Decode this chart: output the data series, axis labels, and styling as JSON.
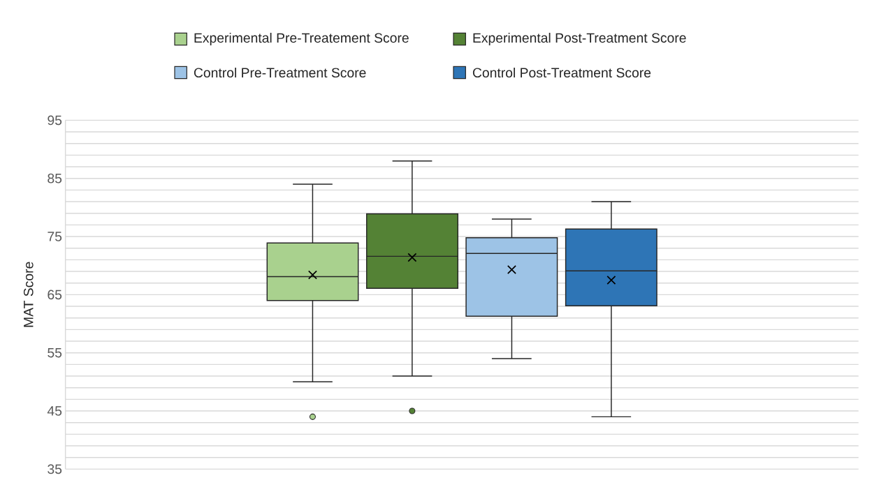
{
  "chart_data": {
    "type": "box",
    "ylabel": "MAT Score",
    "categories": [
      null
    ],
    "ylim": [
      35,
      95
    ],
    "yticks": [
      35,
      {
        "value": 37,
        "label": null
      },
      {
        "value": 39,
        "label": null
      },
      {
        "value": 41,
        "label": null
      },
      {
        "value": 43,
        "label": null
      },
      45,
      {
        "value": 47,
        "label": null
      },
      {
        "value": 49,
        "label": null
      },
      {
        "value": 51,
        "label": null
      },
      {
        "value": 53,
        "label": null
      },
      55,
      {
        "value": 57,
        "label": null
      },
      {
        "value": 59,
        "label": null
      },
      {
        "value": 61,
        "label": null
      },
      {
        "value": 63,
        "label": null
      },
      65,
      {
        "value": 67,
        "label": null
      },
      {
        "value": 69,
        "label": null
      },
      {
        "value": 71,
        "label": null
      },
      {
        "value": 73,
        "label": null
      },
      75,
      {
        "value": 77,
        "label": null
      },
      {
        "value": 79,
        "label": null
      },
      {
        "value": 81,
        "label": null
      },
      {
        "value": 83,
        "label": null
      },
      85,
      {
        "value": 87,
        "label": null
      },
      {
        "value": 89,
        "label": null
      },
      {
        "value": 91,
        "label": null
      },
      {
        "value": 93,
        "label": null
      },
      95
    ],
    "grid": "y",
    "legend": "top",
    "tick_labels": "y",
    "series": [
      {
        "name": "Experimental Pre-Treatement Score",
        "color": "#a9d18e",
        "boxes": [
          {
            "low": 50,
            "q1": 64,
            "median": 68.1,
            "q3": 73.9,
            "high": 84,
            "mean": 68.4,
            "outliers": [
              44
            ]
          }
        ]
      },
      {
        "name": "Experimental Post-Treatment Score",
        "color": "#548235",
        "boxes": [
          {
            "low": 51,
            "q1": 66.1,
            "median": 71.6,
            "q3": 78.9,
            "high": 88,
            "mean": 71.4,
            "outliers": [
              45
            ]
          }
        ]
      },
      {
        "name": "Control Pre-Treatment Score",
        "color": "#9dc3e6",
        "boxes": [
          {
            "low": 54,
            "q1": 61.3,
            "median": 72.1,
            "q3": 74.8,
            "high": 78,
            "mean": 69.3
          }
        ]
      },
      {
        "name": "Control Post-Treatment Score",
        "color": "#2e75b6",
        "boxes": [
          {
            "low": 44,
            "q1": 63.1,
            "median": 69.1,
            "q3": 76.3,
            "high": 81,
            "mean": 67.5
          }
        ]
      }
    ]
  }
}
